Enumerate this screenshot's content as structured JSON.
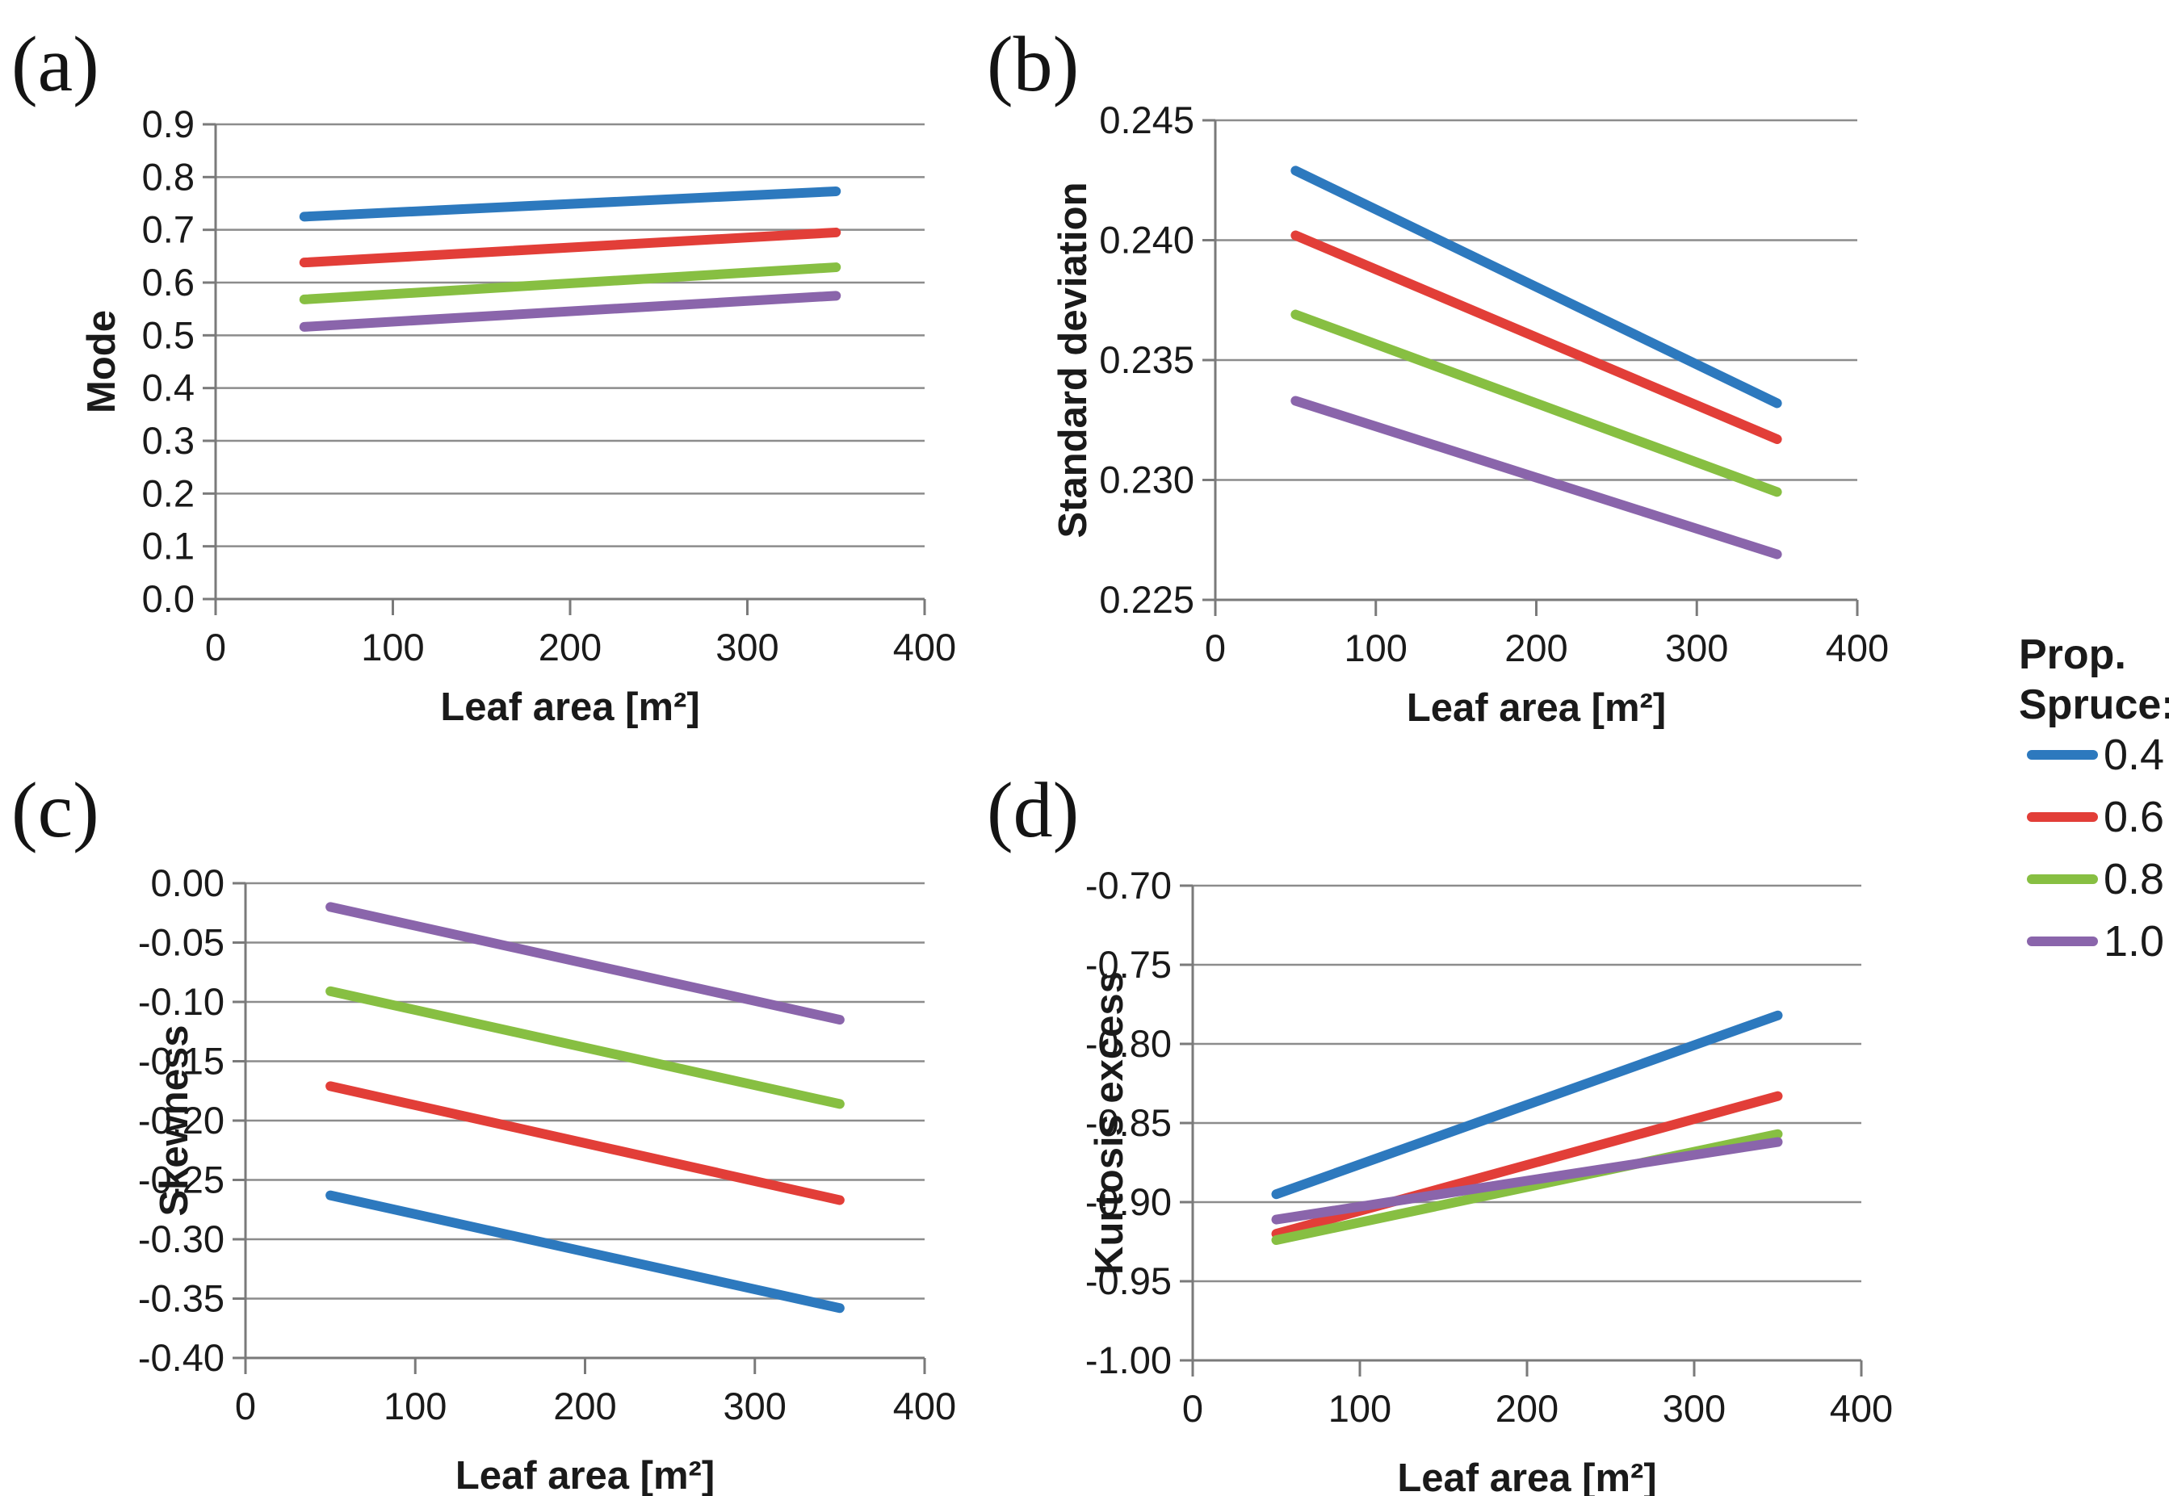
{
  "figure": {
    "layout": "2x2-grid-of-line-charts",
    "background": "#ffffff",
    "panel_labels": [
      "(a)",
      "(b)",
      "(c)",
      "(d)"
    ]
  },
  "colors": {
    "series_blue": "#2D79BE",
    "series_red": "#E23E38",
    "series_green": "#87BF42",
    "series_purple": "#8A65AB",
    "gridline": "#8C8C8C",
    "axis": "#7A7A7A",
    "text": "#1a1a1a"
  },
  "legend": {
    "title_lines": [
      "Prop.",
      "Spruce:"
    ],
    "position": "right-center",
    "entries": [
      {
        "label": "0.4",
        "color": "#2D79BE"
      },
      {
        "label": "0.6",
        "color": "#E23E38"
      },
      {
        "label": "0.8",
        "color": "#87BF42"
      },
      {
        "label": "1.0",
        "color": "#8A65AB"
      }
    ]
  },
  "chart_data": [
    {
      "id": "a",
      "panel_label": "(a)",
      "type": "line",
      "xlabel": "Leaf area [m²]",
      "ylabel": "Mode",
      "xlim": [
        0,
        400
      ],
      "xticks": [
        0,
        100,
        200,
        300,
        400
      ],
      "xtick_labels": [
        "0",
        "100",
        "200",
        "300",
        "400"
      ],
      "ylim": [
        0.0,
        0.9
      ],
      "yticks": [
        0.0,
        0.1,
        0.2,
        0.3,
        0.4,
        0.5,
        0.6,
        0.7,
        0.8,
        0.9
      ],
      "ytick_labels": [
        "0.0",
        "0.1",
        "0.2",
        "0.3",
        "0.4",
        "0.5",
        "0.6",
        "0.7",
        "0.8",
        "0.9"
      ],
      "grid": "horizontal",
      "x": [
        50,
        350
      ],
      "series": [
        {
          "name": "0.4",
          "color": "#2D79BE",
          "values": [
            0.725,
            0.773
          ]
        },
        {
          "name": "0.6",
          "color": "#E23E38",
          "values": [
            0.638,
            0.695
          ]
        },
        {
          "name": "0.8",
          "color": "#87BF42",
          "values": [
            0.568,
            0.629
          ]
        },
        {
          "name": "1.0",
          "color": "#8A65AB",
          "values": [
            0.516,
            0.575
          ]
        }
      ]
    },
    {
      "id": "b",
      "panel_label": "(b)",
      "type": "line",
      "xlabel": "Leaf area [m²]",
      "ylabel": "Standard deviation",
      "xlim": [
        0,
        400
      ],
      "xticks": [
        0,
        100,
        200,
        300,
        400
      ],
      "xtick_labels": [
        "0",
        "100",
        "200",
        "300",
        "400"
      ],
      "ylim": [
        0.225,
        0.245
      ],
      "yticks": [
        0.225,
        0.23,
        0.235,
        0.24,
        0.245
      ],
      "ytick_labels": [
        "0.225",
        "0.230",
        "0.235",
        "0.240",
        "0.245"
      ],
      "grid": "horizontal",
      "x": [
        50,
        350
      ],
      "series": [
        {
          "name": "0.4",
          "color": "#2D79BE",
          "values": [
            0.2429,
            0.2332
          ]
        },
        {
          "name": "0.6",
          "color": "#E23E38",
          "values": [
            0.2402,
            0.2317
          ]
        },
        {
          "name": "0.8",
          "color": "#87BF42",
          "values": [
            0.2369,
            0.2295
          ]
        },
        {
          "name": "1.0",
          "color": "#8A65AB",
          "values": [
            0.2333,
            0.2269
          ]
        }
      ]
    },
    {
      "id": "c",
      "panel_label": "(c)",
      "type": "line",
      "xlabel": "Leaf area [m²]",
      "ylabel": "Skewness",
      "xlim": [
        0,
        400
      ],
      "xticks": [
        0,
        100,
        200,
        300,
        400
      ],
      "xtick_labels": [
        "0",
        "100",
        "200",
        "300",
        "400"
      ],
      "ylim": [
        -0.4,
        0.0
      ],
      "yticks": [
        -0.4,
        -0.35,
        -0.3,
        -0.25,
        -0.2,
        -0.15,
        -0.1,
        -0.05,
        0.0
      ],
      "ytick_labels": [
        "-0.40",
        "-0.35",
        "-0.30",
        "-0.25",
        "-0.20",
        "-0.15",
        "-0.10",
        "-0.05",
        "0.00"
      ],
      "grid": "horizontal",
      "x": [
        50,
        350
      ],
      "series": [
        {
          "name": "0.4",
          "color": "#2D79BE",
          "values": [
            -0.263,
            -0.358
          ]
        },
        {
          "name": "0.6",
          "color": "#E23E38",
          "values": [
            -0.171,
            -0.267
          ]
        },
        {
          "name": "0.8",
          "color": "#87BF42",
          "values": [
            -0.091,
            -0.186
          ]
        },
        {
          "name": "1.0",
          "color": "#8A65AB",
          "values": [
            -0.02,
            -0.115
          ]
        }
      ]
    },
    {
      "id": "d",
      "panel_label": "(d)",
      "type": "line",
      "xlabel": "Leaf area [m²]",
      "ylabel": "Kurtosis excess",
      "xlim": [
        0,
        400
      ],
      "xticks": [
        0,
        100,
        200,
        300,
        400
      ],
      "xtick_labels": [
        "0",
        "100",
        "200",
        "300",
        "400"
      ],
      "ylim": [
        -1.0,
        -0.7
      ],
      "yticks": [
        -1.0,
        -0.95,
        -0.9,
        -0.85,
        -0.8,
        -0.75,
        -0.7
      ],
      "ytick_labels": [
        "-1.00",
        "-0.95",
        "-0.90",
        "-0.85",
        "-0.80",
        "-0.75",
        "-0.70"
      ],
      "grid": "horizontal",
      "x": [
        50,
        350
      ],
      "series": [
        {
          "name": "0.4",
          "color": "#2D79BE",
          "values": [
            -0.895,
            -0.782
          ]
        },
        {
          "name": "0.6",
          "color": "#E23E38",
          "values": [
            -0.92,
            -0.833
          ]
        },
        {
          "name": "0.8",
          "color": "#87BF42",
          "values": [
            -0.924,
            -0.857
          ]
        },
        {
          "name": "1.0",
          "color": "#8A65AB",
          "values": [
            -0.911,
            -0.862
          ]
        }
      ]
    }
  ]
}
